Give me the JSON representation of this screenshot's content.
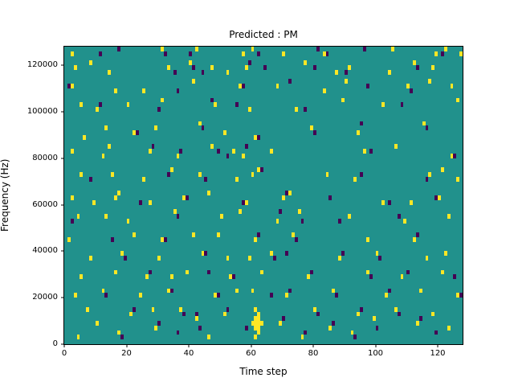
{
  "chart_data": {
    "type": "heatmap",
    "title": "Predicted : PM",
    "xlabel": "Time step",
    "ylabel": "Frequency (Hz)",
    "x_range": [
      0,
      128
    ],
    "y_range": [
      0,
      128000
    ],
    "x_bins": 128,
    "y_bins": 64,
    "x_ticks": [
      0,
      20,
      40,
      60,
      80,
      100,
      120
    ],
    "y_ticks": [
      0,
      20000,
      40000,
      60000,
      80000,
      100000,
      120000
    ],
    "legend": "none",
    "grid": false,
    "colors": {
      "background": "#21918c",
      "high": "#fde725",
      "low": "#440154"
    },
    "cells": {
      "yellow": [
        [
          2,
          62
        ],
        [
          42,
          63
        ],
        [
          57,
          62
        ],
        [
          60,
          63
        ],
        [
          83,
          62
        ],
        [
          105,
          63
        ],
        [
          119,
          62
        ],
        [
          122,
          63
        ],
        [
          127,
          62
        ],
        [
          31,
          63
        ],
        [
          70,
          62
        ],
        [
          3,
          59
        ],
        [
          14,
          58
        ],
        [
          33,
          59
        ],
        [
          40,
          60
        ],
        [
          52,
          58
        ],
        [
          58,
          59
        ],
        [
          77,
          60
        ],
        [
          87,
          58
        ],
        [
          91,
          59
        ],
        [
          104,
          58
        ],
        [
          112,
          60
        ],
        [
          118,
          59
        ],
        [
          8,
          60
        ],
        [
          47,
          59
        ],
        [
          2,
          55
        ],
        [
          25,
          54
        ],
        [
          41,
          56
        ],
        [
          56,
          55
        ],
        [
          83,
          54
        ],
        [
          90,
          56
        ],
        [
          110,
          55
        ],
        [
          16,
          54
        ],
        [
          68,
          55
        ],
        [
          117,
          56
        ],
        [
          124,
          55
        ],
        [
          5,
          51
        ],
        [
          10,
          50
        ],
        [
          31,
          52
        ],
        [
          48,
          51
        ],
        [
          59,
          50
        ],
        [
          89,
          52
        ],
        [
          20,
          51
        ],
        [
          74,
          50
        ],
        [
          102,
          51
        ],
        [
          126,
          52
        ],
        [
          13,
          46
        ],
        [
          22,
          45
        ],
        [
          43,
          47
        ],
        [
          61,
          44
        ],
        [
          79,
          46
        ],
        [
          94,
          45
        ],
        [
          115,
          47
        ],
        [
          6,
          44
        ],
        [
          29,
          46
        ],
        [
          51,
          45
        ],
        [
          2,
          41
        ],
        [
          12,
          40
        ],
        [
          14,
          42
        ],
        [
          27,
          41
        ],
        [
          36,
          40
        ],
        [
          47,
          42
        ],
        [
          54,
          41
        ],
        [
          57,
          40
        ],
        [
          96,
          41
        ],
        [
          106,
          42
        ],
        [
          124,
          40
        ],
        [
          66,
          41
        ],
        [
          15,
          36
        ],
        [
          25,
          35
        ],
        [
          34,
          37
        ],
        [
          43,
          36
        ],
        [
          55,
          35
        ],
        [
          60,
          36
        ],
        [
          62,
          37
        ],
        [
          93,
          35
        ],
        [
          117,
          36
        ],
        [
          121,
          37
        ],
        [
          126,
          35
        ],
        [
          5,
          36
        ],
        [
          84,
          36
        ],
        [
          2,
          31
        ],
        [
          9,
          30
        ],
        [
          16,
          31
        ],
        [
          17,
          32
        ],
        [
          27,
          30
        ],
        [
          38,
          31
        ],
        [
          46,
          32
        ],
        [
          58,
          30
        ],
        [
          70,
          31
        ],
        [
          72,
          32
        ],
        [
          102,
          30
        ],
        [
          120,
          31
        ],
        [
          111,
          30
        ],
        [
          13,
          27
        ],
        [
          20,
          26
        ],
        [
          35,
          28
        ],
        [
          50,
          27
        ],
        [
          68,
          26
        ],
        [
          75,
          28
        ],
        [
          91,
          27
        ],
        [
          109,
          26
        ],
        [
          4,
          27
        ],
        [
          56,
          28
        ],
        [
          123,
          27
        ],
        [
          1,
          22
        ],
        [
          22,
          23
        ],
        [
          31,
          22
        ],
        [
          49,
          23
        ],
        [
          61,
          22
        ],
        [
          73,
          23
        ],
        [
          112,
          22
        ],
        [
          41,
          23
        ],
        [
          97,
          22
        ],
        [
          8,
          18
        ],
        [
          18,
          19
        ],
        [
          30,
          18
        ],
        [
          44,
          19
        ],
        [
          59,
          18
        ],
        [
          66,
          19
        ],
        [
          88,
          18
        ],
        [
          100,
          19
        ],
        [
          116,
          18
        ],
        [
          122,
          19
        ],
        [
          52,
          18
        ],
        [
          5,
          14
        ],
        [
          16,
          15
        ],
        [
          26,
          14
        ],
        [
          39,
          15
        ],
        [
          53,
          14
        ],
        [
          63,
          15
        ],
        [
          78,
          14
        ],
        [
          97,
          15
        ],
        [
          108,
          14
        ],
        [
          121,
          15
        ],
        [
          34,
          14
        ],
        [
          3,
          10
        ],
        [
          12,
          11
        ],
        [
          24,
          10
        ],
        [
          33,
          11
        ],
        [
          48,
          10
        ],
        [
          60,
          11
        ],
        [
          71,
          10
        ],
        [
          86,
          11
        ],
        [
          103,
          10
        ],
        [
          114,
          11
        ],
        [
          126,
          10
        ],
        [
          55,
          11
        ],
        [
          7,
          7
        ],
        [
          21,
          6
        ],
        [
          37,
          7
        ],
        [
          51,
          6
        ],
        [
          61,
          7
        ],
        [
          62,
          6
        ],
        [
          80,
          7
        ],
        [
          94,
          6
        ],
        [
          106,
          7
        ],
        [
          118,
          6
        ],
        [
          28,
          7
        ],
        [
          60,
          4
        ],
        [
          61,
          3
        ],
        [
          61,
          4
        ],
        [
          61,
          5
        ],
        [
          62,
          3
        ],
        [
          62,
          4
        ],
        [
          62,
          5
        ],
        [
          63,
          4
        ],
        [
          10,
          4
        ],
        [
          29,
          3
        ],
        [
          42,
          5
        ],
        [
          69,
          4
        ],
        [
          85,
          3
        ],
        [
          99,
          5
        ],
        [
          113,
          4
        ],
        [
          123,
          3
        ],
        [
          4,
          1
        ],
        [
          17,
          2
        ],
        [
          61,
          1
        ],
        [
          62,
          2
        ],
        [
          76,
          1
        ],
        [
          92,
          2
        ],
        [
          46,
          1
        ]
      ],
      "purple": [
        [
          17,
          63
        ],
        [
          32,
          62
        ],
        [
          40,
          62
        ],
        [
          62,
          62
        ],
        [
          81,
          63
        ],
        [
          84,
          62
        ],
        [
          96,
          63
        ],
        [
          121,
          62
        ],
        [
          11,
          62
        ],
        [
          41,
          59
        ],
        [
          44,
          58
        ],
        [
          59,
          60
        ],
        [
          80,
          59
        ],
        [
          90,
          58
        ],
        [
          113,
          59
        ],
        [
          35,
          58
        ],
        [
          64,
          59
        ],
        [
          1,
          55
        ],
        [
          36,
          54
        ],
        [
          72,
          56
        ],
        [
          111,
          54
        ],
        [
          57,
          55
        ],
        [
          97,
          55
        ],
        [
          11,
          51
        ],
        [
          30,
          50
        ],
        [
          47,
          52
        ],
        [
          55,
          51
        ],
        [
          77,
          50
        ],
        [
          108,
          51
        ],
        [
          23,
          45
        ],
        [
          44,
          46
        ],
        [
          62,
          44
        ],
        [
          80,
          45
        ],
        [
          95,
          47
        ],
        [
          116,
          46
        ],
        [
          49,
          41
        ],
        [
          52,
          40
        ],
        [
          58,
          42
        ],
        [
          98,
          41
        ],
        [
          125,
          40
        ],
        [
          28,
          42
        ],
        [
          37,
          41
        ],
        [
          33,
          36
        ],
        [
          45,
          35
        ],
        [
          63,
          37
        ],
        [
          95,
          36
        ],
        [
          116,
          35
        ],
        [
          8,
          35
        ],
        [
          39,
          31
        ],
        [
          57,
          30
        ],
        [
          71,
          32
        ],
        [
          85,
          31
        ],
        [
          104,
          30
        ],
        [
          119,
          31
        ],
        [
          24,
          30
        ],
        [
          2,
          26
        ],
        [
          36,
          27
        ],
        [
          69,
          28
        ],
        [
          76,
          26
        ],
        [
          107,
          27
        ],
        [
          88,
          26
        ],
        [
          32,
          22
        ],
        [
          62,
          23
        ],
        [
          74,
          22
        ],
        [
          113,
          23
        ],
        [
          15,
          22
        ],
        [
          19,
          18
        ],
        [
          45,
          19
        ],
        [
          67,
          18
        ],
        [
          89,
          19
        ],
        [
          101,
          18
        ],
        [
          71,
          19
        ],
        [
          27,
          15
        ],
        [
          54,
          14
        ],
        [
          79,
          15
        ],
        [
          98,
          14
        ],
        [
          110,
          15
        ],
        [
          125,
          14
        ],
        [
          46,
          15
        ],
        [
          13,
          10
        ],
        [
          34,
          11
        ],
        [
          49,
          10
        ],
        [
          72,
          11
        ],
        [
          87,
          10
        ],
        [
          104,
          11
        ],
        [
          127,
          10
        ],
        [
          66,
          10
        ],
        [
          22,
          7
        ],
        [
          38,
          6
        ],
        [
          52,
          7
        ],
        [
          81,
          6
        ],
        [
          95,
          7
        ],
        [
          107,
          6
        ],
        [
          42,
          6
        ],
        [
          30,
          4
        ],
        [
          43,
          3
        ],
        [
          70,
          5
        ],
        [
          86,
          4
        ],
        [
          100,
          3
        ],
        [
          114,
          5
        ],
        [
          58,
          3
        ],
        [
          18,
          1
        ],
        [
          77,
          2
        ],
        [
          93,
          1
        ],
        [
          119,
          2
        ],
        [
          36,
          2
        ]
      ]
    }
  }
}
